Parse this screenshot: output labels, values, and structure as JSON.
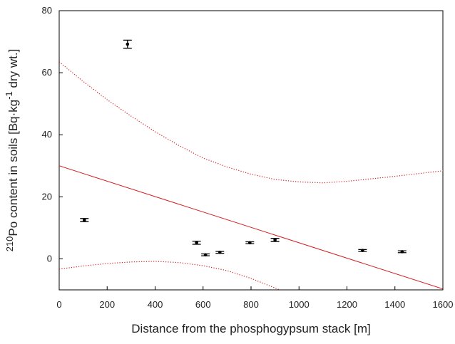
{
  "chart_data": {
    "type": "scatter",
    "xlabel": "Distance from the phosphogypsum stack [m]",
    "ylabel": [
      "210",
      "Po content in soils [Bq·kg",
      "-1",
      " dry wt.]"
    ],
    "xlim": [
      0,
      1600
    ],
    "ylim": [
      -10,
      80
    ],
    "xticks": [
      0,
      200,
      400,
      600,
      800,
      1000,
      1200,
      1400,
      1600
    ],
    "yticks": [
      0,
      20,
      40,
      60,
      80
    ],
    "points": {
      "color": "#000000",
      "x": [
        105,
        285,
        573,
        610,
        670,
        795,
        900,
        1265,
        1430
      ],
      "values": [
        12.5,
        69.2,
        5.2,
        1.3,
        2.1,
        5.2,
        6.1,
        2.7,
        2.3
      ],
      "errors": [
        0.5,
        1.3,
        0.5,
        0.3,
        0.3,
        0.3,
        0.5,
        0.3,
        0.3
      ]
    },
    "fit": {
      "color": "#d42020",
      "x": [
        0,
        1600
      ],
      "values": [
        30,
        -9.7
      ]
    },
    "upper_band": {
      "color": "#d42020",
      "x": [
        0,
        100,
        200,
        300,
        400,
        500,
        600,
        700,
        800,
        900,
        1000,
        1100,
        1200,
        1300,
        1400,
        1500,
        1600
      ],
      "values": [
        63.5,
        57.2,
        51.3,
        46,
        41,
        36.5,
        32.5,
        29.6,
        27.3,
        25.6,
        24.8,
        24.5,
        25,
        25.8,
        26.6,
        27.5,
        28.4
      ]
    },
    "lower_band": {
      "color": "#d42020",
      "x": [
        0,
        100,
        200,
        300,
        400,
        500,
        600,
        700,
        800,
        900,
        920
      ],
      "values": [
        -3.3,
        -2.3,
        -1.5,
        -1,
        -0.8,
        -1.2,
        -2.2,
        -3.8,
        -6.3,
        -9.4,
        -10
      ]
    }
  }
}
